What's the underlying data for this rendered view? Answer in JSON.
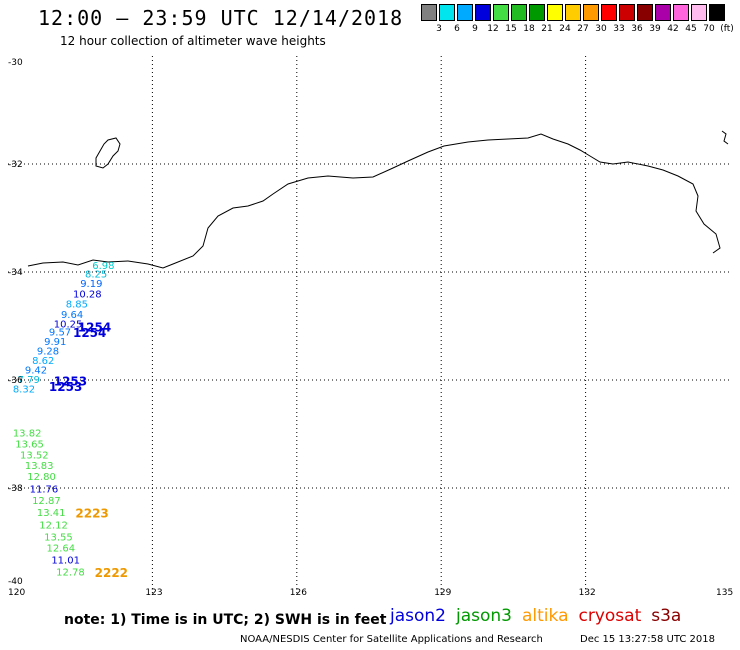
{
  "header": {
    "title": "12:00 – 23:59 UTC 12/14/2018",
    "subtitle": "12 hour collection of altimeter wave heights"
  },
  "legend": {
    "colors": [
      "#808080",
      "#00e5ee",
      "#00aaff",
      "#0000dd",
      "#44dd44",
      "#22bb22",
      "#009900",
      "#ffff00",
      "#ffcc00",
      "#ff9900",
      "#ff0000",
      "#cc0000",
      "#880000",
      "#aa00aa",
      "#ff66dd",
      "#ffbbee",
      "#000000"
    ],
    "labels": [
      "3",
      "6",
      "9",
      "12",
      "15",
      "18",
      "21",
      "24",
      "27",
      "30",
      "33",
      "36",
      "39",
      "42",
      "45",
      "70"
    ],
    "unit": "(ft)"
  },
  "map": {
    "lon_range": [
      120,
      135
    ],
    "lat_range": [
      -40,
      -30
    ],
    "lon_ticks": [
      "120",
      "123",
      "126",
      "129",
      "132",
      "135"
    ],
    "lat_ticks": [
      "-30",
      "-32",
      "-34",
      "-36",
      "-38",
      "-40"
    ],
    "grid": true,
    "observations": [
      {
        "v": "6.98",
        "lon": 121.75,
        "lat": -33.94,
        "color": "#00cccc"
      },
      {
        "v": "8.25",
        "lon": 121.6,
        "lat": -34.1,
        "color": "#00bbdd"
      },
      {
        "v": "9.19",
        "lon": 121.5,
        "lat": -34.28,
        "color": "#0066ff"
      },
      {
        "v": "10.28",
        "lon": 121.35,
        "lat": -34.47,
        "color": "#0000dd"
      },
      {
        "v": "8.85",
        "lon": 121.2,
        "lat": -34.66,
        "color": "#00aaff"
      },
      {
        "v": "9.64",
        "lon": 121.1,
        "lat": -34.85,
        "color": "#0077ff"
      },
      {
        "v": "10.25",
        "lon": 120.95,
        "lat": -35.03,
        "color": "#0000dd"
      },
      {
        "v": "9.57",
        "lon": 120.85,
        "lat": -35.18,
        "color": "#0077ff"
      },
      {
        "v": "9.91",
        "lon": 120.75,
        "lat": -35.35,
        "color": "#0077ff"
      },
      {
        "v": "9.28",
        "lon": 120.6,
        "lat": -35.53,
        "color": "#0077ff"
      },
      {
        "v": "8.62",
        "lon": 120.5,
        "lat": -35.7,
        "color": "#00aaff"
      },
      {
        "v": "9.42",
        "lon": 120.35,
        "lat": -35.88,
        "color": "#0077ff"
      },
      {
        "v": "7.79",
        "lon": 120.2,
        "lat": -36.06,
        "color": "#00bbdd"
      },
      {
        "v": "8.32",
        "lon": 120.1,
        "lat": -36.23,
        "color": "#00aaff"
      },
      {
        "v": "13.82",
        "lon": 120.1,
        "lat": -37.05,
        "color": "#44dd44"
      },
      {
        "v": "13.65",
        "lon": 120.15,
        "lat": -37.25,
        "color": "#44dd44"
      },
      {
        "v": "13.52",
        "lon": 120.25,
        "lat": -37.45,
        "color": "#44dd44"
      },
      {
        "v": "13.83",
        "lon": 120.35,
        "lat": -37.65,
        "color": "#44dd44"
      },
      {
        "v": "12.80",
        "lon": 120.4,
        "lat": -37.85,
        "color": "#44dd44"
      },
      {
        "v": "11.76",
        "lon": 120.45,
        "lat": -38.08,
        "color": "#0000dd"
      },
      {
        "v": "12.87",
        "lon": 120.5,
        "lat": -38.3,
        "color": "#44dd44"
      },
      {
        "v": "13.41",
        "lon": 120.6,
        "lat": -38.52,
        "color": "#44dd44"
      },
      {
        "v": "12.12",
        "lon": 120.65,
        "lat": -38.75,
        "color": "#44dd44"
      },
      {
        "v": "13.55",
        "lon": 120.75,
        "lat": -38.97,
        "color": "#44dd44"
      },
      {
        "v": "12.64",
        "lon": 120.8,
        "lat": -39.18,
        "color": "#44dd44"
      },
      {
        "v": "11.01",
        "lon": 120.9,
        "lat": -39.4,
        "color": "#0000dd"
      },
      {
        "v": "12.78",
        "lon": 121.0,
        "lat": -39.62,
        "color": "#44dd44"
      }
    ],
    "time_labels": [
      {
        "v": "1254",
        "lon": 121.45,
        "lat": -35.1,
        "color": "#0000dd"
      },
      {
        "v": "1254",
        "lon": 121.35,
        "lat": -35.2,
        "color": "#0000dd"
      },
      {
        "v": "1253",
        "lon": 120.95,
        "lat": -36.1,
        "color": "#0000dd"
      },
      {
        "v": "1253",
        "lon": 120.85,
        "lat": -36.2,
        "color": "#0000dd"
      },
      {
        "v": "2223",
        "lon": 121.4,
        "lat": -38.55,
        "color": "#ee9900"
      },
      {
        "v": "2222",
        "lon": 121.8,
        "lat": -39.65,
        "color": "#ee9900"
      }
    ]
  },
  "footer": {
    "note": "note:  1) Time is in UTC;  2) SWH is in feet",
    "satellites": [
      {
        "name": "jason2",
        "color": "#0000dd"
      },
      {
        "name": "jason3",
        "color": "#009900"
      },
      {
        "name": "altika",
        "color": "#ff9900"
      },
      {
        "name": "cryosat",
        "color": "#dd0000"
      },
      {
        "name": "s3a",
        "color": "#880000"
      }
    ],
    "credit": "NOAA/NESDIS Center for Satellite Applications and Research",
    "timestamp": "Dec 15 13:27:58 UTC 2018"
  }
}
